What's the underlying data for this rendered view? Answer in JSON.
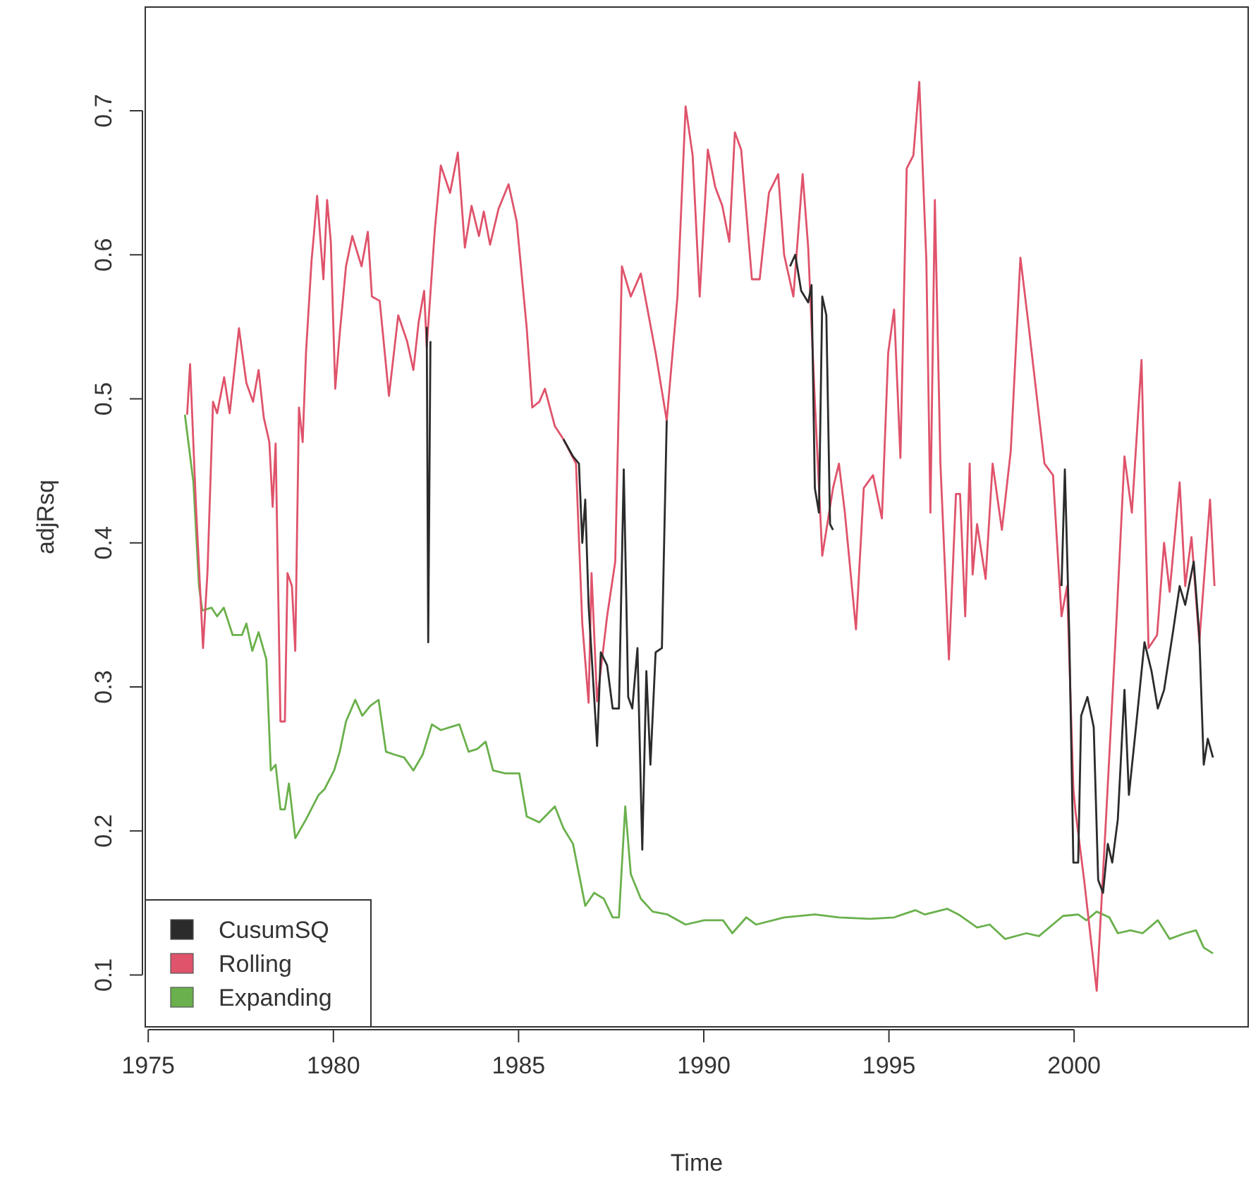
{
  "chart_data": {
    "type": "line",
    "xlabel": "Time",
    "ylabel": "adjRsq",
    "xlim": [
      1974.92,
      2004.7
    ],
    "ylim": [
      0.064,
      0.772
    ],
    "xticks": [
      1975,
      1980,
      1985,
      1990,
      1995,
      2000
    ],
    "yticks": [
      0.1,
      0.2,
      0.3,
      0.4,
      0.5,
      0.6,
      0.7
    ],
    "grid": false,
    "legend": "bottom left",
    "line_style": "solid",
    "marker": "none",
    "series": [
      {
        "name": "CusumSQ",
        "color": "#2b2b2b",
        "x": [
          1982.52,
          1982.56,
          1982.62,
          1982.7,
          1986.21,
          1986.47,
          1986.63,
          1986.72,
          1986.8,
          1986.89,
          1987.12,
          1987.22,
          1987.39,
          1987.54,
          1987.71,
          1987.84,
          1987.96,
          1988.07,
          1988.21,
          1988.34,
          1988.45,
          1988.56,
          1988.7,
          1988.87,
          1989.0,
          1989.1,
          1992.33,
          1992.47,
          1992.63,
          1992.82,
          1992.91,
          1993.0,
          1993.11,
          1993.2,
          1993.31,
          1993.41,
          1993.49,
          1993.6,
          1999.66,
          1999.75,
          1999.87,
          1999.98,
          2000.11,
          2000.19,
          2000.36,
          2000.53,
          2000.65,
          2000.78,
          2000.91,
          2001.03,
          2001.18,
          2001.36,
          2001.48,
          2001.67,
          2001.9,
          2002.09,
          2002.26,
          2002.43,
          2002.68,
          2002.85,
          2003.0,
          2003.23,
          2003.38,
          2003.5,
          2003.61,
          2003.75
        ],
        "values": [
          0.55,
          0.331,
          0.54,
          null,
          0.472,
          0.46,
          0.455,
          0.4,
          0.43,
          0.357,
          0.259,
          0.324,
          0.315,
          0.285,
          0.285,
          0.451,
          0.293,
          0.285,
          0.327,
          0.187,
          0.311,
          0.246,
          0.324,
          0.327,
          0.485,
          null,
          0.592,
          0.6,
          0.575,
          0.567,
          0.579,
          0.438,
          0.421,
          0.571,
          0.558,
          0.413,
          0.409,
          null,
          0.37,
          0.451,
          0.336,
          0.178,
          0.178,
          0.28,
          0.293,
          0.272,
          0.166,
          0.157,
          0.191,
          0.178,
          0.208,
          0.298,
          0.225,
          0.272,
          0.331,
          0.311,
          0.285,
          0.298,
          0.34,
          0.37,
          0.357,
          0.387,
          0.336,
          0.246,
          0.264,
          0.251
        ]
      },
      {
        "name": "Rolling",
        "color": "#df536b",
        "x": [
          1976.05,
          1976.13,
          1976.29,
          1976.48,
          1976.6,
          1976.75,
          1976.86,
          1977.05,
          1977.2,
          1977.45,
          1977.65,
          1977.83,
          1977.98,
          1978.12,
          1978.27,
          1978.36,
          1978.44,
          1978.57,
          1978.69,
          1978.76,
          1978.88,
          1978.97,
          1979.07,
          1979.17,
          1979.26,
          1979.41,
          1979.47,
          1979.56,
          1979.73,
          1979.83,
          1979.93,
          1980.05,
          1980.17,
          1980.34,
          1980.51,
          1980.76,
          1980.93,
          1981.04,
          1981.25,
          1981.5,
          1981.75,
          1981.99,
          1982.16,
          1982.3,
          1982.45,
          1982.52,
          1982.74,
          1982.9,
          1983.15,
          1983.36,
          1983.55,
          1983.73,
          1983.93,
          1984.06,
          1984.23,
          1984.46,
          1984.73,
          1984.95,
          1985.22,
          1985.37,
          1985.56,
          1985.71,
          1985.98,
          1986.21,
          1986.55,
          1986.72,
          1986.89,
          1986.97,
          1987.12,
          1987.39,
          1987.61,
          1987.79,
          1988.03,
          1988.3,
          1988.7,
          1989.0,
          1989.29,
          1989.51,
          1989.7,
          1989.89,
          1990.11,
          1990.31,
          1990.5,
          1990.69,
          1990.84,
          1991.01,
          1991.3,
          1991.51,
          1991.76,
          1992.01,
          1992.17,
          1992.42,
          1992.67,
          1992.82,
          1993.0,
          1993.2,
          1993.49,
          1993.65,
          1993.81,
          1994.11,
          1994.32,
          1994.57,
          1994.81,
          1994.98,
          1995.14,
          1995.31,
          1995.48,
          1995.66,
          1995.82,
          1996.01,
          1996.12,
          1996.24,
          1996.39,
          1996.62,
          1996.81,
          1996.92,
          1997.06,
          1997.18,
          1997.26,
          1997.38,
          1997.61,
          1997.8,
          1998.05,
          1998.29,
          1998.55,
          1998.78,
          1999.2,
          1999.43,
          1999.66,
          1999.81,
          1999.98,
          2000.04,
          2000.27,
          2000.61,
          2000.86,
          2001.14,
          2001.36,
          2001.56,
          2001.82,
          2002.01,
          2002.24,
          2002.43,
          2002.58,
          2002.85,
          2003.0,
          2003.17,
          2003.38,
          2003.67,
          2003.79
        ],
        "values": [
          0.489,
          0.524,
          0.425,
          0.327,
          0.38,
          0.498,
          0.49,
          0.515,
          0.49,
          0.549,
          0.511,
          0.498,
          0.52,
          0.487,
          0.47,
          0.425,
          0.469,
          0.276,
          0.276,
          0.379,
          0.37,
          0.325,
          0.494,
          0.47,
          0.532,
          0.596,
          0.613,
          0.641,
          0.583,
          0.638,
          0.609,
          0.507,
          0.545,
          0.592,
          0.613,
          0.592,
          0.616,
          0.571,
          0.568,
          0.502,
          0.558,
          0.54,
          0.52,
          0.553,
          0.575,
          0.536,
          0.618,
          0.662,
          0.643,
          0.671,
          0.605,
          0.634,
          0.613,
          0.63,
          0.607,
          0.632,
          0.649,
          0.623,
          0.549,
          0.494,
          0.498,
          0.507,
          0.481,
          0.472,
          0.455,
          0.344,
          0.289,
          0.379,
          0.29,
          0.349,
          0.387,
          0.592,
          0.571,
          0.587,
          0.532,
          0.485,
          0.571,
          0.703,
          0.669,
          0.571,
          0.673,
          0.647,
          0.634,
          0.609,
          0.685,
          0.673,
          0.583,
          0.583,
          0.643,
          0.656,
          0.6,
          0.571,
          0.656,
          0.605,
          0.498,
          0.391,
          0.438,
          0.455,
          0.421,
          0.34,
          0.438,
          0.447,
          0.417,
          0.532,
          0.562,
          0.459,
          0.66,
          0.669,
          0.72,
          0.596,
          0.421,
          0.638,
          0.455,
          0.319,
          0.434,
          0.434,
          0.349,
          0.455,
          0.378,
          0.413,
          0.375,
          0.455,
          0.409,
          0.464,
          0.598,
          0.549,
          0.455,
          0.447,
          0.349,
          0.37,
          0.229,
          0.213,
          0.166,
          0.089,
          0.208,
          0.344,
          0.46,
          0.421,
          0.527,
          0.327,
          0.336,
          0.4,
          0.366,
          0.442,
          0.37,
          0.404,
          0.331,
          0.43,
          0.37
        ]
      },
      {
        "name": "Expanding",
        "color": "#6ab04c",
        "x": [
          1975.99,
          1976.22,
          1976.37,
          1976.46,
          1976.71,
          1976.86,
          1977.04,
          1977.28,
          1977.53,
          1977.65,
          1977.81,
          1977.98,
          1978.19,
          1978.31,
          1978.44,
          1978.57,
          1978.69,
          1978.8,
          1978.97,
          1979.26,
          1979.6,
          1979.76,
          1980.02,
          1980.17,
          1980.34,
          1980.59,
          1980.78,
          1981.0,
          1981.22,
          1981.42,
          1981.65,
          1981.91,
          1982.16,
          1982.41,
          1982.66,
          1982.9,
          1983.15,
          1983.4,
          1983.65,
          1983.89,
          1984.11,
          1984.31,
          1984.64,
          1985.02,
          1985.22,
          1985.56,
          1985.98,
          1986.21,
          1986.47,
          1986.8,
          1987.04,
          1987.3,
          1987.54,
          1987.71,
          1987.88,
          1988.03,
          1988.3,
          1988.62,
          1989.02,
          1989.51,
          1990.01,
          1990.52,
          1990.77,
          1991.15,
          1991.41,
          1992.17,
          1993.0,
          1993.65,
          1994.49,
          1995.14,
          1995.71,
          1995.97,
          1996.57,
          1996.88,
          1997.38,
          1997.72,
          1998.14,
          1998.71,
          1999.05,
          1999.7,
          2000.11,
          2000.33,
          2000.61,
          2000.95,
          2001.18,
          2001.52,
          2001.85,
          2002.26,
          2002.58,
          2003.0,
          2003.29,
          2003.5,
          2003.75
        ],
        "values": [
          0.489,
          0.442,
          0.37,
          0.353,
          0.355,
          0.349,
          0.355,
          0.336,
          0.336,
          0.344,
          0.325,
          0.338,
          0.319,
          0.242,
          0.246,
          0.215,
          0.215,
          0.233,
          0.195,
          0.208,
          0.225,
          0.229,
          0.242,
          0.255,
          0.276,
          0.291,
          0.28,
          0.287,
          0.291,
          0.255,
          0.253,
          0.251,
          0.242,
          0.253,
          0.274,
          0.27,
          0.272,
          0.274,
          0.255,
          0.257,
          0.262,
          0.242,
          0.24,
          0.24,
          0.21,
          0.206,
          0.217,
          0.202,
          0.191,
          0.148,
          0.157,
          0.153,
          0.14,
          0.14,
          0.217,
          0.17,
          0.153,
          0.144,
          0.142,
          0.135,
          0.138,
          0.138,
          0.129,
          0.14,
          0.135,
          0.14,
          0.142,
          0.14,
          0.139,
          0.14,
          0.145,
          0.142,
          0.146,
          0.142,
          0.133,
          0.135,
          0.125,
          0.129,
          0.127,
          0.141,
          0.142,
          0.138,
          0.144,
          0.14,
          0.129,
          0.131,
          0.129,
          0.138,
          0.125,
          0.129,
          0.131,
          0.119,
          0.115
        ]
      }
    ]
  }
}
